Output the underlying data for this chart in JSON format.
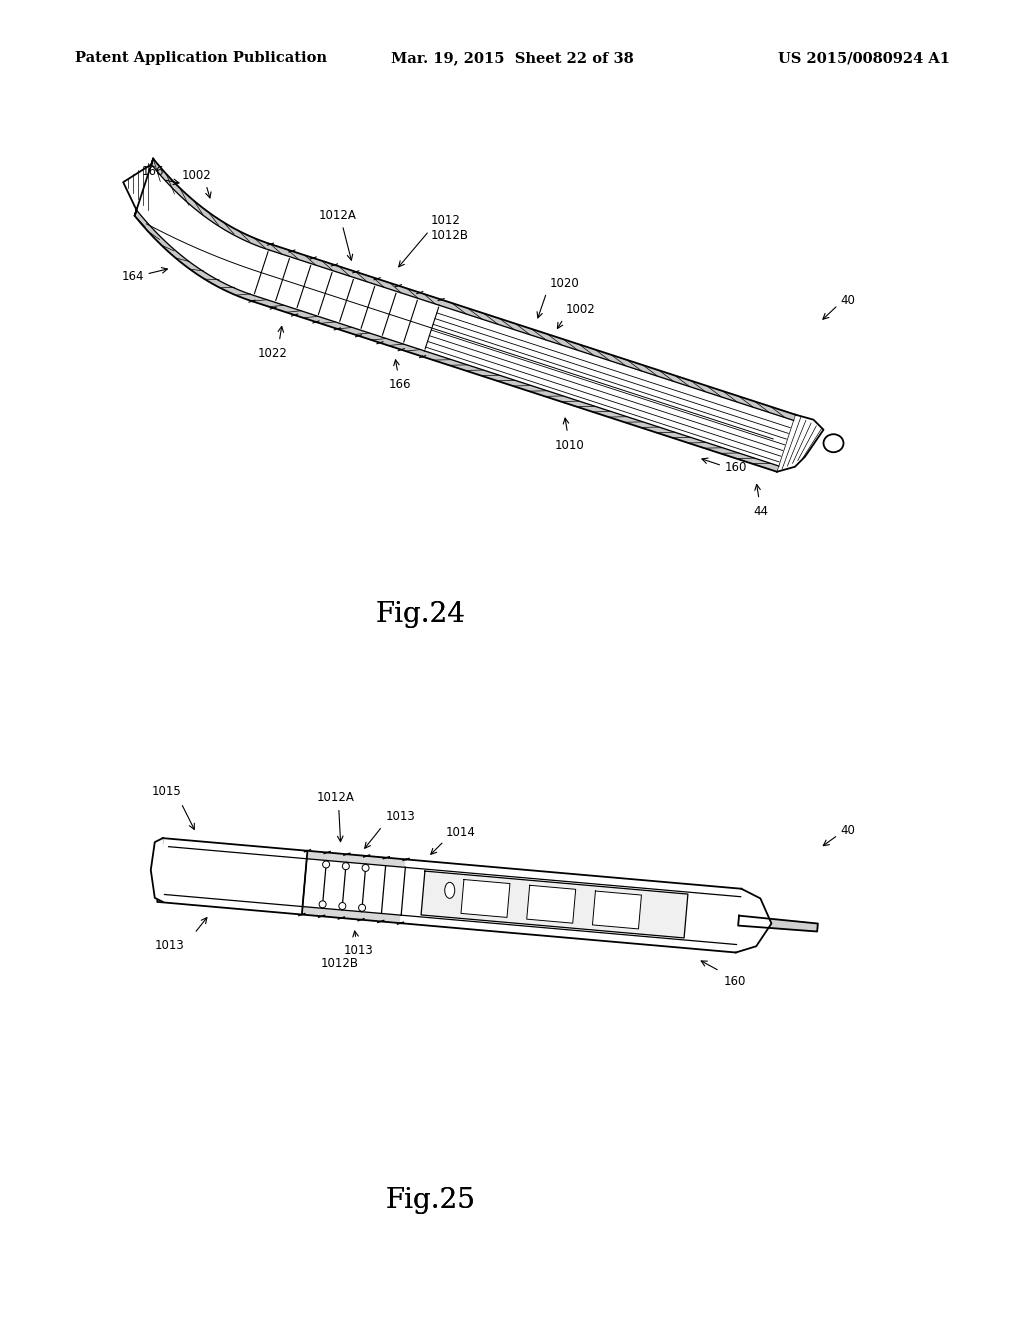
{
  "background_color": "#ffffff",
  "header": {
    "left": "Patent Application Publication",
    "center": "Mar. 19, 2015  Sheet 22 of 38",
    "right": "US 2015/0080924 A1",
    "fontsize": 10.5
  },
  "fig24_caption": {
    "text": "Fig.24",
    "fontsize": 20
  },
  "fig25_caption": {
    "text": "Fig.25",
    "fontsize": 20
  },
  "label_fontsize": 8.5,
  "lw_outer": 1.3,
  "lw_inner": 0.9,
  "lw_hatch": 0.5
}
